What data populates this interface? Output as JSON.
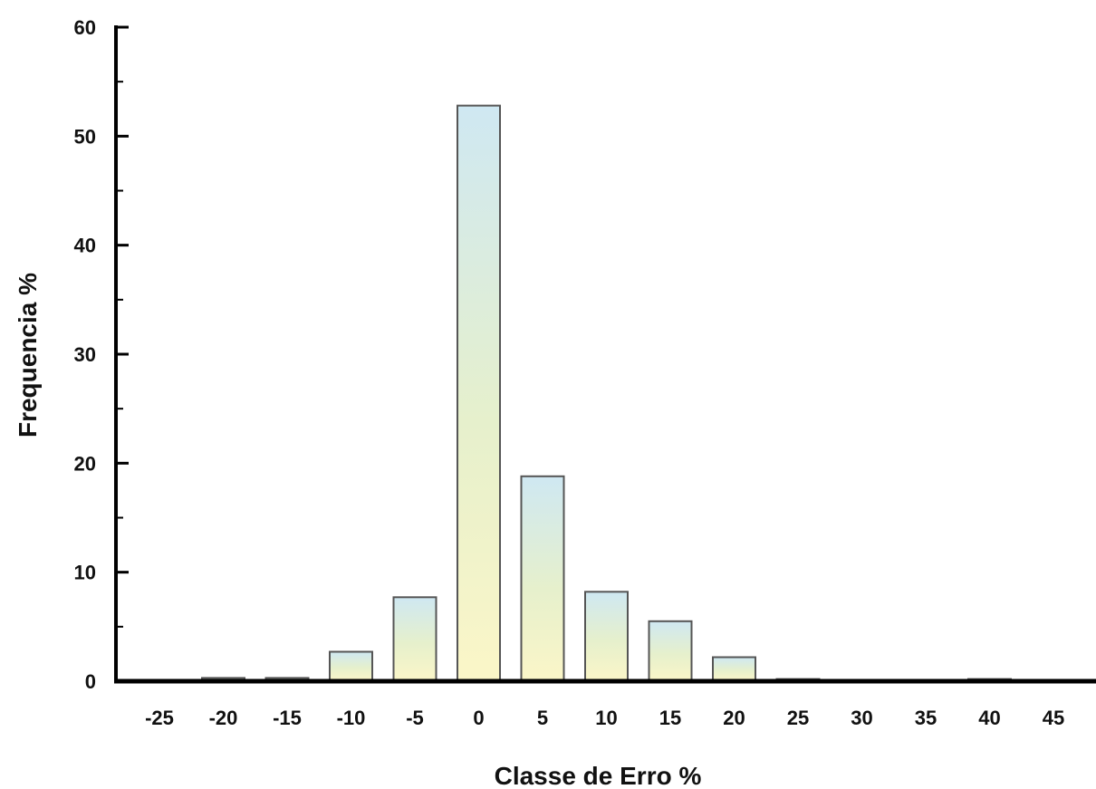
{
  "chart_data": {
    "type": "bar",
    "title": "",
    "xlabel": "Classe de Erro %",
    "ylabel": "Frequencia %",
    "categories": [
      "-25",
      "-20",
      "-15",
      "-10",
      "-5",
      "0",
      "5",
      "10",
      "15",
      "20",
      "25",
      "30",
      "35",
      "40",
      "45"
    ],
    "values": [
      0,
      0.3,
      0.3,
      2.7,
      7.7,
      52.8,
      18.8,
      8.2,
      5.5,
      2.2,
      0.2,
      0,
      0,
      0.2,
      0
    ],
    "ylim": [
      0,
      60
    ],
    "yticks": [
      0,
      10,
      20,
      30,
      40,
      50,
      60
    ],
    "grid": false,
    "legend": "none",
    "colors": {
      "bar_top": "#cfe8f2",
      "bar_mid": "#e6f0cc",
      "bar_bottom": "#fbf6c8",
      "bar_stroke": "#555555",
      "axis": "#000000"
    }
  }
}
